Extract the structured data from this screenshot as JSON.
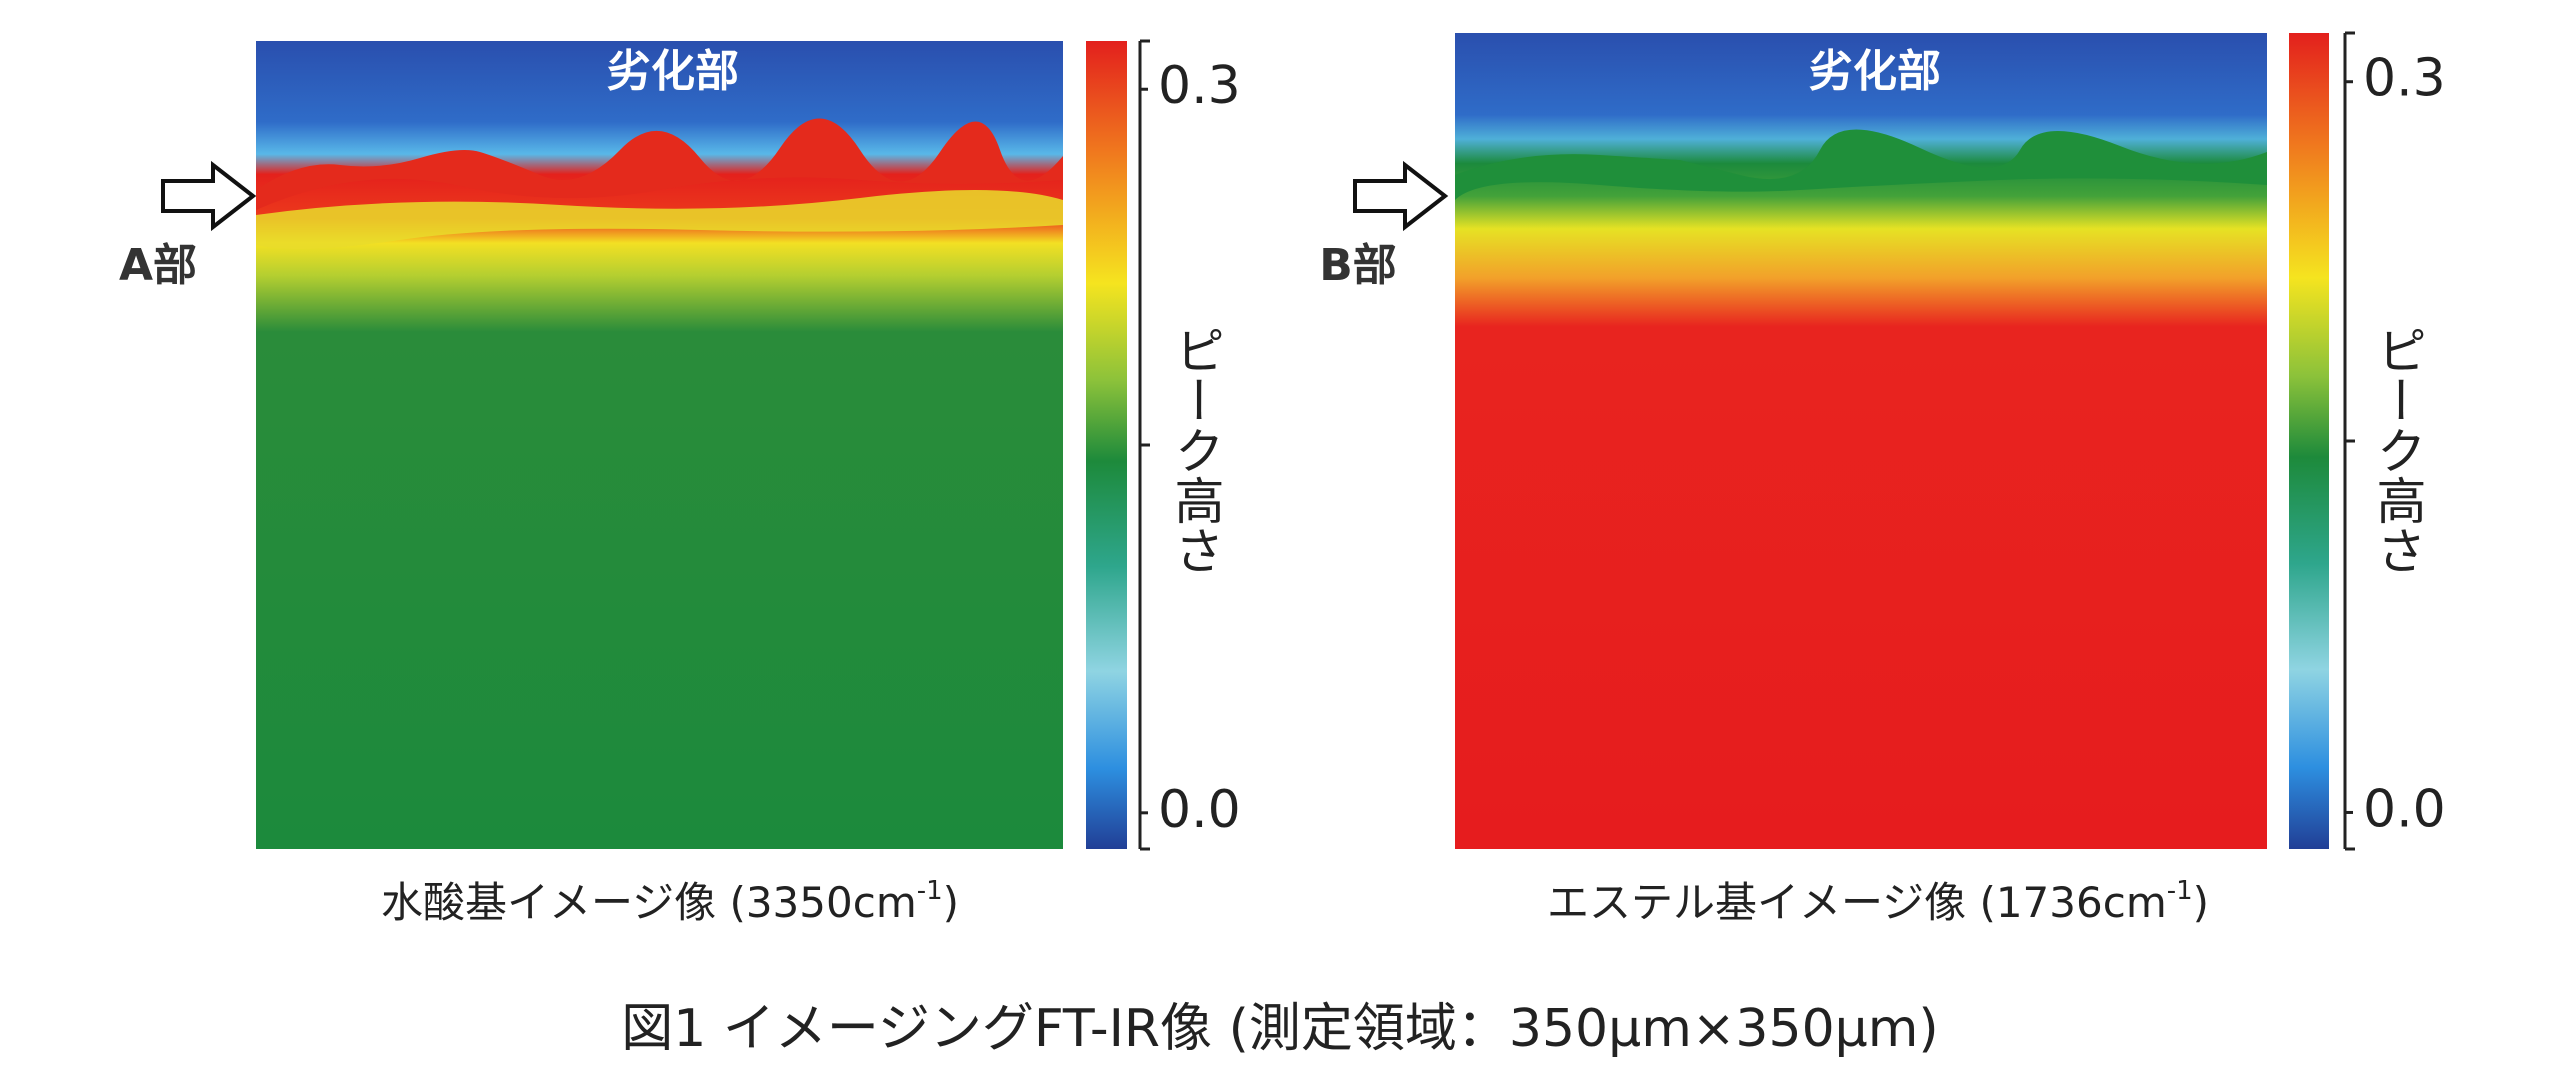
{
  "panels": [
    {
      "region_label": "劣化部",
      "marker_label": "A部",
      "colorbar_label": "ピーク高さ",
      "colorbar_lim": [
        -0.015,
        0.32
      ],
      "colorbar_ticks": [
        {
          "value": 0,
          "label": "0.0"
        },
        0.3
      ],
      "caption": "水酸基イメージ像 (3350cm",
      "caption_sup": "-1",
      "caption_end": ")"
    },
    {
      "region_label": "劣化部",
      "marker_label": "B部",
      "colorbar_label": "ピーク高さ",
      "colorbar_lim": [
        -0.015,
        0.32
      ],
      "colorbar_ticks": [
        {
          "value": 0,
          "label": "0.0"
        },
        0.3
      ],
      "caption": "エステル基イメージ像 (1736cm",
      "caption_sup": "-1",
      "caption_end": ")"
    }
  ],
  "figure_caption": "図1 イメージングFT-IR像 (測定領域：350μm×350μm)"
}
